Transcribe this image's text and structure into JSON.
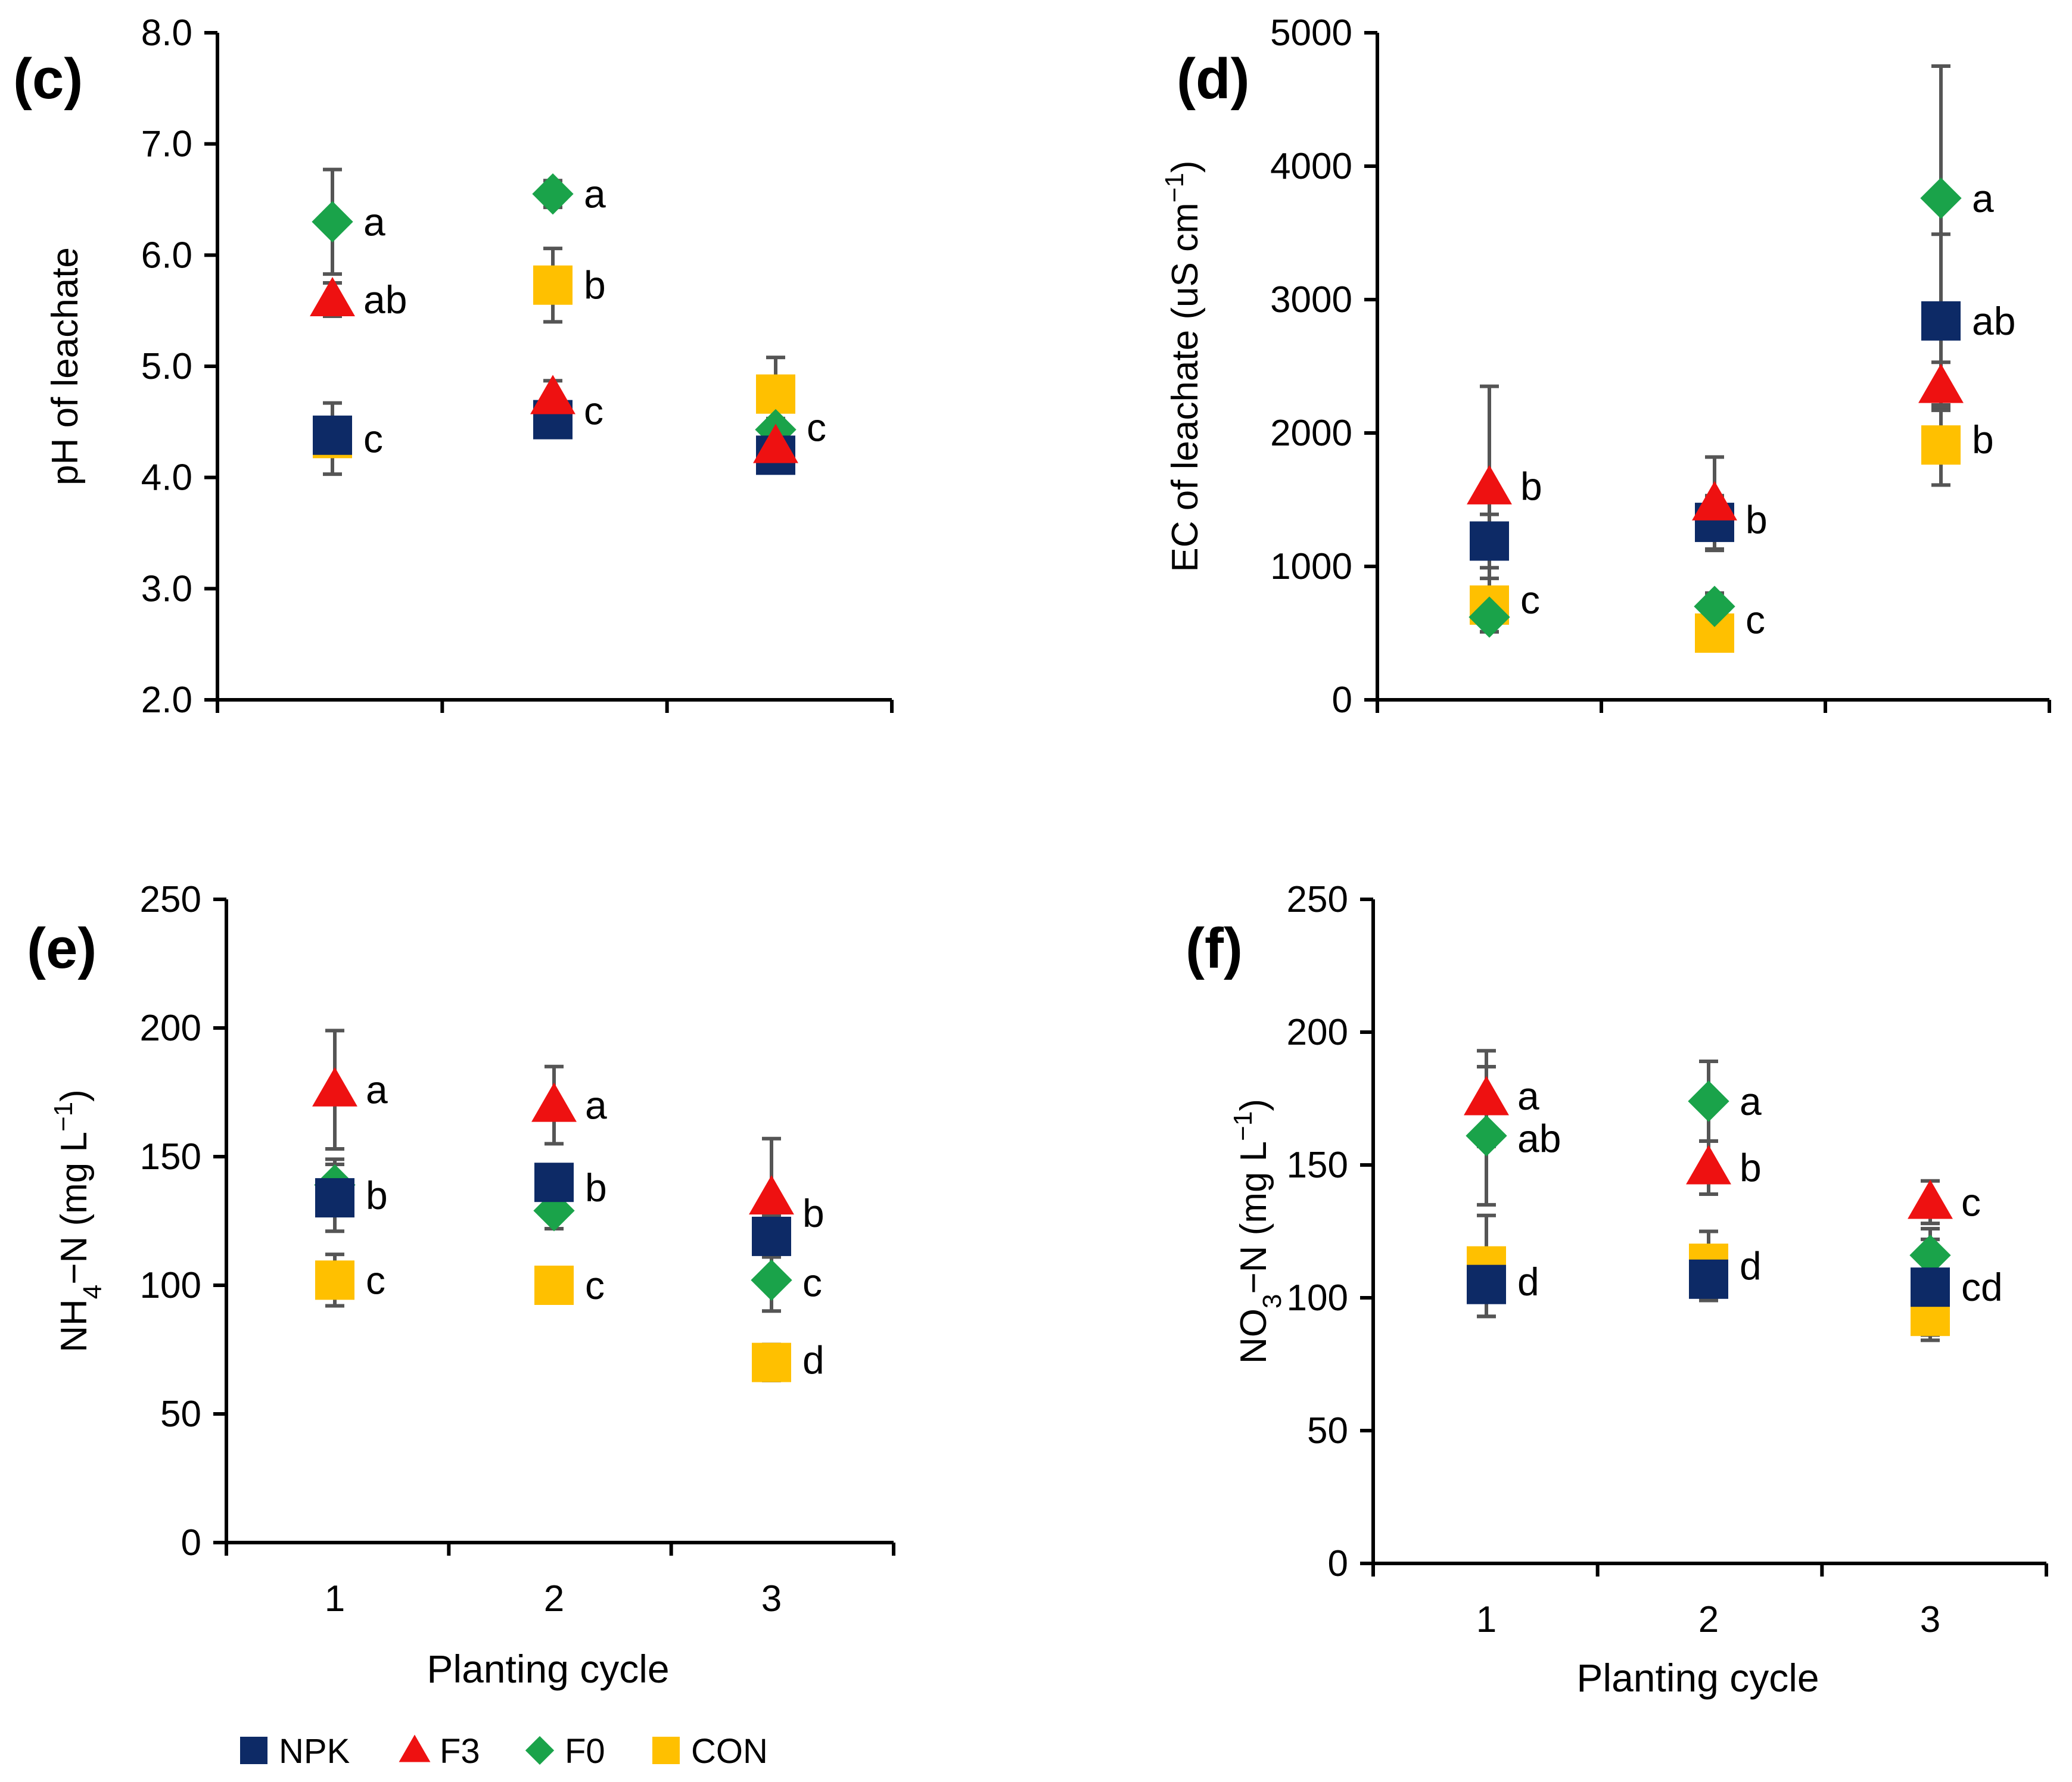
{
  "chart_data": [
    {
      "type": "scatter",
      "panel_label": "(c)",
      "ylabel_parts": [
        {
          "text": "pH of leachate"
        }
      ],
      "xlabel": "",
      "ylim": [
        2.0,
        8.0
      ],
      "yticks": [
        "2.0",
        "3.0",
        "4.0",
        "5.0",
        "6.0",
        "7.0",
        "8.0"
      ],
      "categories": [
        "1",
        "2",
        "3"
      ],
      "show_category_labels": false,
      "series": [
        {
          "name": "NPK",
          "values": [
            4.38,
            4.52,
            4.2
          ],
          "errors": [
            0,
            0.08,
            0.08
          ]
        },
        {
          "name": "F3",
          "values": [
            5.6,
            4.72,
            4.28
          ],
          "errors": [
            0.15,
            0.15,
            0.1
          ]
        },
        {
          "name": "F0",
          "values": [
            6.3,
            6.55,
            4.43
          ],
          "errors": [
            0.47,
            0.12,
            0.1
          ]
        },
        {
          "name": "CON",
          "values": [
            4.35,
            5.73,
            4.75
          ],
          "errors": [
            0.32,
            0.33,
            0.33
          ]
        }
      ],
      "significance": [
        {
          "x": 1,
          "y": 6.3,
          "text": "a"
        },
        {
          "x": 1,
          "y": 5.6,
          "text": "ab"
        },
        {
          "x": 1,
          "y": 4.35,
          "text": "c"
        },
        {
          "x": 2,
          "y": 6.55,
          "text": "a"
        },
        {
          "x": 2,
          "y": 5.73,
          "text": "b"
        },
        {
          "x": 2,
          "y": 4.6,
          "text": "c"
        },
        {
          "x": 3,
          "y": 4.45,
          "text": "c"
        }
      ]
    },
    {
      "type": "scatter",
      "panel_label": "(d)",
      "ylabel_parts": [
        {
          "text": "EC of leachate  (uS cm"
        },
        {
          "text": "−1",
          "sup": true
        },
        {
          "text": ")"
        }
      ],
      "xlabel": "",
      "ylim": [
        0,
        5000
      ],
      "yticks": [
        "0",
        "1000",
        "2000",
        "3000",
        "4000",
        "5000"
      ],
      "categories": [
        "1",
        "2",
        "3"
      ],
      "show_category_labels": false,
      "series": [
        {
          "name": "NPK",
          "values": [
            1190,
            1330,
            2840
          ],
          "errors": [
            200,
            200,
            650
          ]
        },
        {
          "name": "F3",
          "values": [
            1590,
            1470,
            2350
          ],
          "errors": [
            760,
            350,
            180
          ]
        },
        {
          "name": "F0",
          "values": [
            620,
            700,
            3760
          ],
          "errors": [
            110,
            100,
            990
          ]
        },
        {
          "name": "CON",
          "values": [
            710,
            500,
            1910
          ],
          "errors": [
            200,
            100,
            300
          ]
        }
      ],
      "significance": [
        {
          "x": 1,
          "y": 1600,
          "text": "b"
        },
        {
          "x": 1,
          "y": 750,
          "text": "c"
        },
        {
          "x": 2,
          "y": 1350,
          "text": "b"
        },
        {
          "x": 2,
          "y": 600,
          "text": "c"
        },
        {
          "x": 3,
          "y": 3760,
          "text": "a"
        },
        {
          "x": 3,
          "y": 2840,
          "text": "ab"
        },
        {
          "x": 3,
          "y": 1950,
          "text": "b"
        }
      ]
    },
    {
      "type": "scatter",
      "panel_label": "(e)",
      "ylabel_parts": [
        {
          "text": "NH"
        },
        {
          "text": "4",
          "sub": true
        },
        {
          "text": "−N (mg L"
        },
        {
          "text": "−1",
          "sup": true
        },
        {
          "text": ")"
        }
      ],
      "xlabel": "Planting cycle",
      "ylim": [
        0,
        250
      ],
      "yticks": [
        "0",
        "50",
        "100",
        "150",
        "200",
        "250"
      ],
      "categories": [
        "1",
        "2",
        "3"
      ],
      "show_category_labels": true,
      "series": [
        {
          "name": "NPK",
          "values": [
            134,
            140,
            119
          ],
          "errors": [
            13,
            5,
            8
          ]
        },
        {
          "name": "F3",
          "values": [
            176,
            170,
            134
          ],
          "errors": [
            23,
            15,
            23
          ]
        },
        {
          "name": "F0",
          "values": [
            139,
            129,
            102
          ],
          "errors": [
            10,
            7,
            12
          ]
        },
        {
          "name": "CON",
          "values": [
            102,
            100,
            70
          ],
          "errors": [
            10,
            3,
            7
          ]
        }
      ],
      "significance": [
        {
          "x": 1,
          "y": 176,
          "text": "a"
        },
        {
          "x": 1,
          "y": 135,
          "text": "b"
        },
        {
          "x": 1,
          "y": 102,
          "text": "c"
        },
        {
          "x": 2,
          "y": 170,
          "text": "a"
        },
        {
          "x": 2,
          "y": 138,
          "text": "b"
        },
        {
          "x": 2,
          "y": 100,
          "text": "c"
        },
        {
          "x": 3,
          "y": 128,
          "text": "b"
        },
        {
          "x": 3,
          "y": 101,
          "text": "c"
        },
        {
          "x": 3,
          "y": 71,
          "text": "d"
        }
      ]
    },
    {
      "type": "scatter",
      "panel_label": "(f)",
      "ylabel_parts": [
        {
          "text": "NO"
        },
        {
          "text": "3",
          "sub": true
        },
        {
          "text": "−N (mg L"
        },
        {
          "text": "−1",
          "sup": true
        },
        {
          "text": ")"
        }
      ],
      "xlabel": "Planting cycle",
      "ylim": [
        0,
        250
      ],
      "yticks": [
        "0",
        "50",
        "100",
        "150",
        "200",
        "250"
      ],
      "categories": [
        "1",
        "2",
        "3"
      ],
      "show_category_labels": true,
      "series": [
        {
          "name": "NPK",
          "values": [
            105,
            107,
            104
          ],
          "errors": [
            12,
            8,
            18
          ]
        },
        {
          "name": "F3",
          "values": [
            175,
            149,
            136
          ],
          "errors": [
            18,
            10,
            8
          ]
        },
        {
          "name": "F0",
          "values": [
            161,
            174,
            116
          ],
          "errors": [
            26,
            15,
            10
          ]
        },
        {
          "name": "CON",
          "values": [
            112,
            113,
            93
          ],
          "errors": [
            19,
            12,
            9
          ]
        }
      ],
      "significance": [
        {
          "x": 1,
          "y": 176,
          "text": "a"
        },
        {
          "x": 1,
          "y": 160,
          "text": "ab"
        },
        {
          "x": 1,
          "y": 106,
          "text": "d"
        },
        {
          "x": 2,
          "y": 174,
          "text": "a"
        },
        {
          "x": 2,
          "y": 149,
          "text": "b"
        },
        {
          "x": 2,
          "y": 112,
          "text": "d"
        },
        {
          "x": 3,
          "y": 136,
          "text": "c"
        },
        {
          "x": 3,
          "y": 104,
          "text": "cd"
        }
      ]
    }
  ],
  "legend": [
    {
      "name": "NPK",
      "marker": "square",
      "color": "#0d2a66"
    },
    {
      "name": "F3",
      "marker": "triangle",
      "color": "#ee1111"
    },
    {
      "name": "F0",
      "marker": "diamond",
      "color": "#1aa34a"
    },
    {
      "name": "CON",
      "marker": "square",
      "color": "#ffc000"
    }
  ],
  "colors": {
    "error_bar": "#555555",
    "axis": "#000000"
  }
}
